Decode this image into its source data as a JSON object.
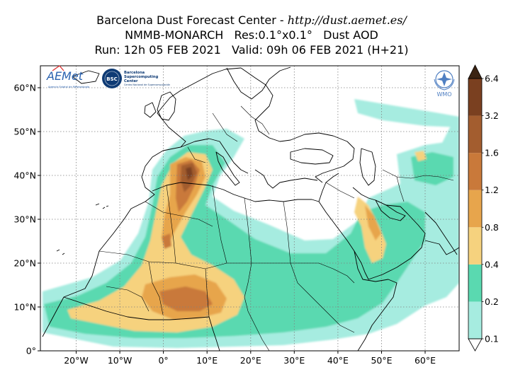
{
  "title": {
    "line1_prefix": "Barcelona Dust Forecast Center - ",
    "line1_url": "http://dust.aemet.es/",
    "line2": "NMMB-MONARCH   Res:0.1°x0.1°   Dust AOD",
    "line3": "Run: 12h 05 FEB 2021   Valid: 09h 06 FEB 2021 (H+21)"
  },
  "map": {
    "lon_range": [
      -28,
      68
    ],
    "lat_range": [
      0,
      65
    ],
    "lon_ticks": [
      "20°W",
      "10°W",
      "0°",
      "10°E",
      "20°E",
      "30°E",
      "40°E",
      "50°E",
      "60°E"
    ],
    "lat_ticks": [
      "0°",
      "10°N",
      "20°N",
      "30°N",
      "40°N",
      "50°N",
      "60°N"
    ],
    "grid": "dotted"
  },
  "colorbar": {
    "labels": [
      "0.1",
      "0.2",
      "0.4",
      "0.8",
      "1.2",
      "1.6",
      "3.2",
      "6.4"
    ],
    "colors": [
      "#a6ece0",
      "#5ad9b0",
      "#f6d27e",
      "#e7a54c",
      "#c9793a",
      "#a35d2f",
      "#7a4020",
      "#3b2413"
    ]
  },
  "logos": {
    "aemet_text": "AEMet",
    "aemet_sub": "Agencia Estatal de Meteorología",
    "bsc_badge": "BSC",
    "bsc_text1": "Barcelona",
    "bsc_text2": "Supercomputing",
    "bsc_text3": "Center",
    "bsc_sub": "Centro Nacional de Supercomputación",
    "wmo_text": "WMO"
  }
}
